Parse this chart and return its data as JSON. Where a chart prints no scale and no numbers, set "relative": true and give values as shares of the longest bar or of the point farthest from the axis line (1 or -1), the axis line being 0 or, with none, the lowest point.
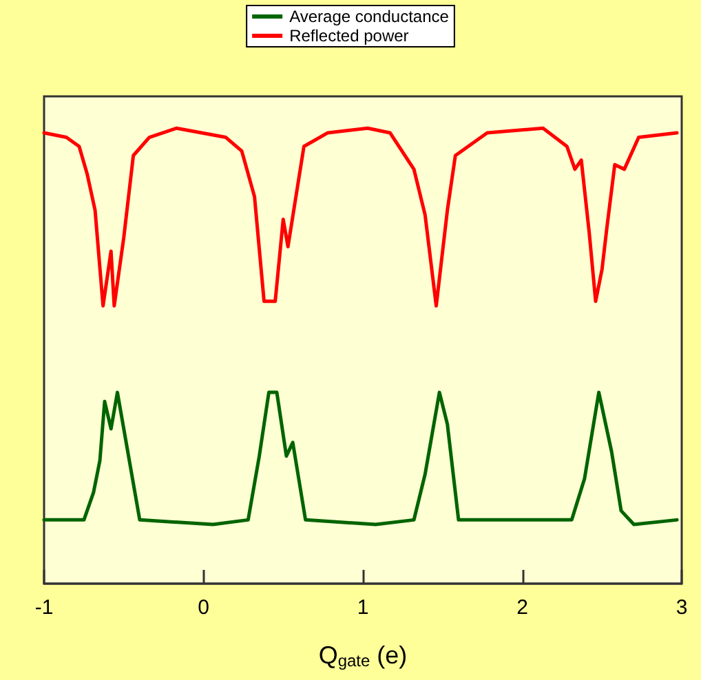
{
  "chart_data": {
    "type": "line",
    "relative": true,
    "xlabel": "Q$_{gate}$ (e)",
    "xlim": [
      -1,
      3
    ],
    "xticks": [
      -1,
      0,
      1,
      2,
      3
    ],
    "tick_labels": "x",
    "legend": "top",
    "grid": false,
    "marker": "none",
    "line_style": "solid",
    "series": [
      {
        "name": "Average conductance",
        "color": "#006400",
        "x": [
          -1.0,
          -0.75,
          -0.69,
          -0.65,
          -0.62,
          -0.58,
          -0.54,
          -0.47,
          -0.4,
          0.06,
          0.28,
          0.35,
          0.41,
          0.46,
          0.52,
          0.56,
          0.64,
          1.08,
          1.32,
          1.39,
          1.48,
          1.53,
          1.6,
          2.0,
          2.31,
          2.39,
          2.48,
          2.56,
          2.62,
          2.7,
          2.97
        ],
        "values": [
          0.14,
          0.14,
          0.2,
          0.27,
          0.4,
          0.34,
          0.42,
          0.28,
          0.14,
          0.13,
          0.14,
          0.28,
          0.42,
          0.42,
          0.28,
          0.31,
          0.14,
          0.13,
          0.14,
          0.24,
          0.42,
          0.35,
          0.14,
          0.14,
          0.14,
          0.23,
          0.42,
          0.29,
          0.16,
          0.13,
          0.14
        ]
      },
      {
        "name": "Reflected power",
        "color": "#ff0000",
        "x": [
          -1.0,
          -0.86,
          -0.78,
          -0.73,
          -0.68,
          -0.63,
          -0.58,
          -0.56,
          -0.5,
          -0.44,
          -0.34,
          -0.17,
          0.14,
          0.24,
          0.32,
          0.38,
          0.45,
          0.5,
          0.53,
          0.63,
          0.78,
          1.03,
          1.17,
          1.32,
          1.39,
          1.46,
          1.53,
          1.58,
          1.78,
          2.13,
          2.28,
          2.33,
          2.37,
          2.42,
          2.46,
          2.5,
          2.53,
          2.58,
          2.64,
          2.73,
          2.97
        ],
        "values": [
          0.99,
          0.98,
          0.96,
          0.9,
          0.82,
          0.61,
          0.73,
          0.61,
          0.76,
          0.94,
          0.98,
          1.0,
          0.98,
          0.95,
          0.85,
          0.62,
          0.62,
          0.8,
          0.74,
          0.96,
          0.99,
          1.0,
          0.99,
          0.91,
          0.81,
          0.61,
          0.82,
          0.94,
          0.99,
          1.0,
          0.96,
          0.91,
          0.93,
          0.77,
          0.62,
          0.69,
          0.78,
          0.92,
          0.91,
          0.98,
          0.99
        ]
      }
    ]
  }
}
